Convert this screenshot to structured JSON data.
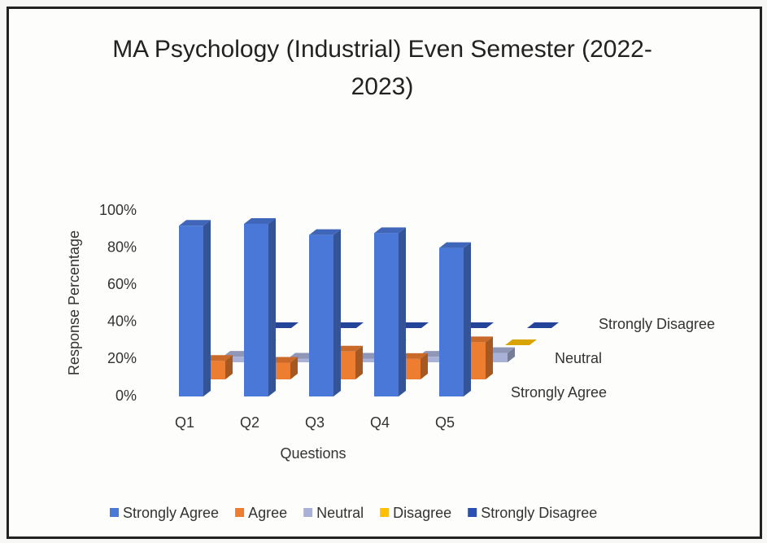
{
  "chart_data": {
    "type": "bar3d",
    "title": "MA Psychology (Industrial) Even Semester (2022-2023)",
    "x_label": "Questions",
    "y_label": "Response Percentage",
    "categories": [
      "Q1",
      "Q2",
      "Q3",
      "Q4",
      "Q5"
    ],
    "series": [
      {
        "name": "Strongly Agree",
        "color": "#4a78d8",
        "values": [
          92,
          93,
          87,
          88,
          80
        ]
      },
      {
        "name": "Agree",
        "color": "#ed7d31",
        "values": [
          10,
          9,
          15,
          11,
          20
        ]
      },
      {
        "name": "Neutral",
        "color": "#a9b2d6",
        "values": [
          3,
          2,
          2,
          3,
          5
        ]
      },
      {
        "name": "Disagree",
        "color": "#ffc000",
        "values": [
          0,
          0,
          0,
          0,
          0
        ]
      },
      {
        "name": "Strongly Disagree",
        "color": "#2a50b4",
        "values": [
          0,
          0,
          0,
          0,
          0
        ]
      }
    ],
    "ylim": [
      0,
      100
    ],
    "yticks": [
      {
        "value": 0,
        "label": "0%"
      },
      {
        "value": 20,
        "label": "20%"
      },
      {
        "value": 40,
        "label": "40%"
      },
      {
        "value": 60,
        "label": "60%"
      },
      {
        "value": 80,
        "label": "80%"
      },
      {
        "value": 100,
        "label": "100%"
      }
    ],
    "legend": "bottom"
  }
}
